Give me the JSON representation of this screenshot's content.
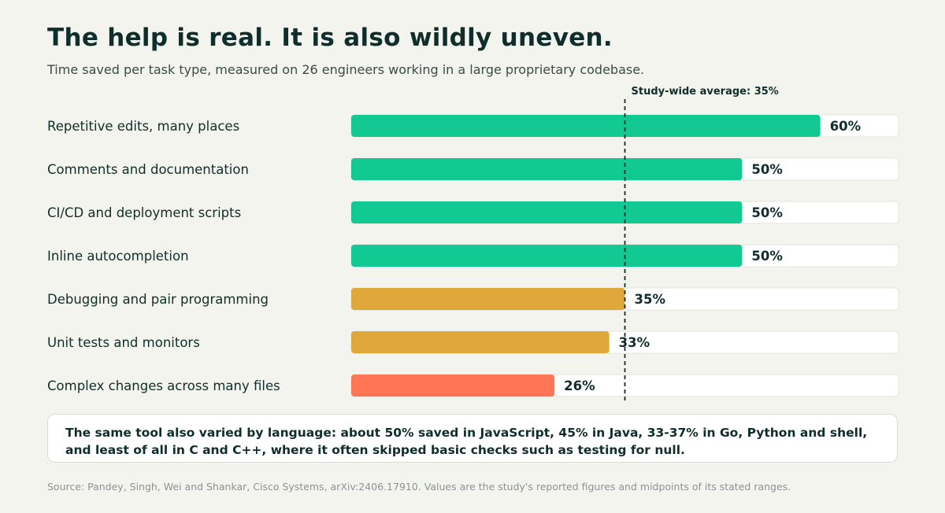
{
  "header": {
    "title": "The help is real. It is also wildly uneven.",
    "subtitle": "Time saved per task type, measured on 26 engineers working in a large proprietary codebase."
  },
  "chart_data": {
    "type": "bar",
    "orientation": "horizontal",
    "categories": [
      "Repetitive edits, many places",
      "Comments and documentation",
      "CI/CD and deployment scripts",
      "Inline autocompletion",
      "Debugging and pair programming",
      "Unit tests and monitors",
      "Complex changes across many files"
    ],
    "values": [
      60,
      50,
      50,
      50,
      35,
      33,
      26
    ],
    "value_labels": [
      "60%",
      "50%",
      "50%",
      "50%",
      "35%",
      "33%",
      "26%"
    ],
    "colors": [
      "#12c994",
      "#12c994",
      "#12c994",
      "#12c994",
      "#e0a83b",
      "#e0a83b",
      "#ff7657"
    ],
    "xlim": [
      0,
      70
    ],
    "track_color": "#ffffff",
    "reference_line": {
      "value": 35,
      "label": "Study-wide average: 35%"
    }
  },
  "note": {
    "text": "The same tool also varied by language: about 50% saved in JavaScript, 45% in Java, 33-37% in Go, Python and shell, and least of all in C and C++, where it often skipped basic checks such as testing for null."
  },
  "footer": {
    "source": "Source: Pandey, Singh, Wei and Shankar, Cisco Systems, arXiv:2406.17910. Values are the study's reported figures and midpoints of its stated ranges."
  }
}
